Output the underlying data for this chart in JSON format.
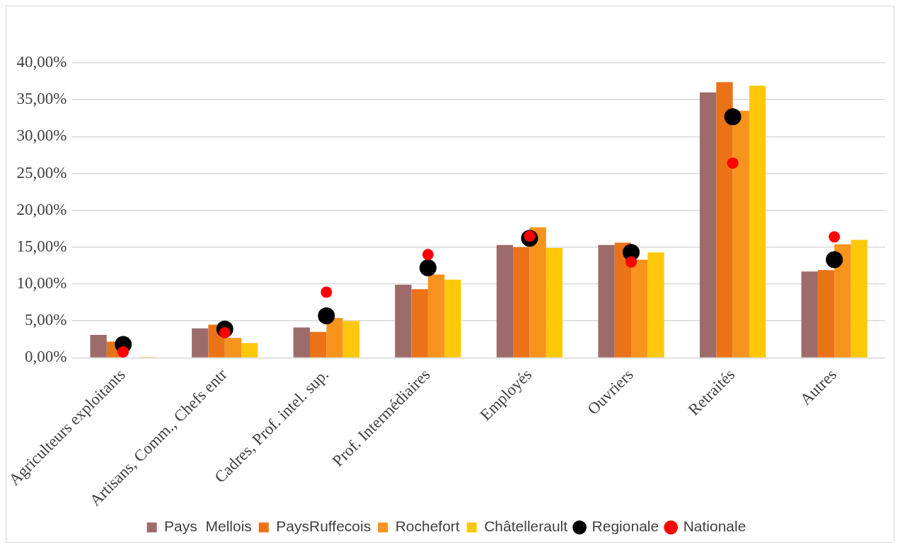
{
  "chart_data": {
    "type": "bar",
    "categories": [
      "Agriculteurs exploitants",
      "Artisans, Comm., Chefs entr",
      "Cadres, Prof. intel. sup.",
      "Prof. Intermédiaires",
      "Employés",
      "Ouvriers",
      "Retraités",
      "Autres"
    ],
    "series": [
      {
        "name": "Pays  Mellois",
        "color": "#9e6b6b",
        "values": [
          3.1,
          4.0,
          4.1,
          9.9,
          15.3,
          15.3,
          36.0,
          11.7
        ]
      },
      {
        "name": "PaysRuffecois",
        "color": "#ec7217",
        "values": [
          2.2,
          4.5,
          3.5,
          9.3,
          15.0,
          15.6,
          37.4,
          11.9
        ]
      },
      {
        "name": "Rochefort",
        "color": "#f7941e",
        "values": [
          null,
          2.7,
          5.4,
          11.3,
          17.7,
          13.3,
          33.5,
          15.4
        ]
      },
      {
        "name": "Châtellerault",
        "color": "#ffc80a",
        "values": [
          0.1,
          2.0,
          5.0,
          10.6,
          14.9,
          14.3,
          36.9,
          16.0
        ]
      },
      {
        "name": "Regionale",
        "type": "scatter",
        "color": "#000000",
        "x": [
          "Agriculteurs exploitants",
          "Artisans, Comm., Chefs entr",
          "Cadres, Prof. intel. sup.",
          "Prof. Intermédiaires",
          "Employés",
          "Ouvriers",
          "Retraités",
          "Autres"
        ],
        "values": [
          1.8,
          3.9,
          5.7,
          12.2,
          16.2,
          14.3,
          32.7,
          13.3
        ]
      },
      {
        "name": "Nationale",
        "type": "scatter",
        "color": "#ff0000",
        "x": [
          "Agriculteurs exploitants",
          "Artisans, Comm., Chefs entr",
          "Cadres, Prof. intel. sup.",
          "Prof. Intermédiaires",
          "Employés",
          "Ouvriers",
          "Retraités",
          "Autres"
        ],
        "values": [
          0.8,
          3.4,
          8.9,
          14.0,
          16.5,
          13.0,
          26.4,
          16.4
        ]
      }
    ],
    "ylim": [
      0,
      40
    ],
    "yticks": [
      {
        "value": 0,
        "label": "0,00%"
      },
      {
        "value": 5,
        "label": "5,00%"
      },
      {
        "value": 10,
        "label": "10,00%"
      },
      {
        "value": 15,
        "label": "15,00%"
      },
      {
        "value": 20,
        "label": "20,00%"
      },
      {
        "value": 25,
        "label": "25,00%"
      },
      {
        "value": 30,
        "label": "30,00%"
      },
      {
        "value": 35,
        "label": "35,00%"
      },
      {
        "value": 40,
        "label": "40,00%"
      }
    ],
    "grid": "y",
    "legend": "bottom",
    "marker": "circle"
  }
}
